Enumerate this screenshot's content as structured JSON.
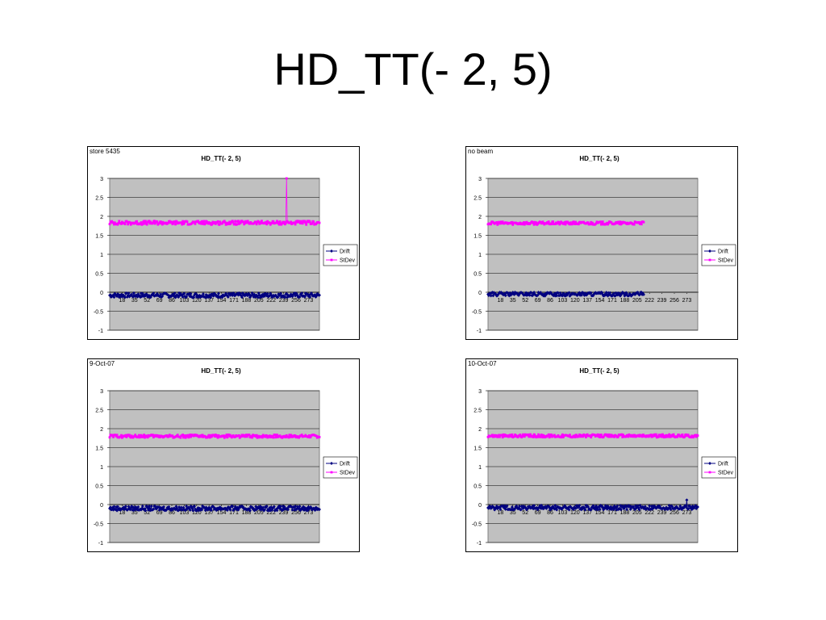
{
  "slide": {
    "title": "HD_TT(- 2, 5)"
  },
  "colors": {
    "drift": "#000080",
    "stdev": "#ff00ff",
    "plot_bg": "#c0c0c0",
    "grid": "#000000"
  },
  "chart_data": [
    {
      "type": "line",
      "corner_label": "store 5435",
      "title": "HD_TT(- 2, 5)",
      "ylim": [
        -1,
        3
      ],
      "y_ticks": [
        "3",
        "2.5",
        "2",
        "1.5",
        "1",
        "0.5",
        "0",
        "-0.5",
        "-1"
      ],
      "x_range": [
        1,
        288
      ],
      "x_ticks": [
        "18",
        "35",
        "52",
        "69",
        "86",
        "103",
        "120",
        "137",
        "154",
        "171",
        "188",
        "205",
        "222",
        "239",
        "256",
        "273"
      ],
      "legend": {
        "position": "right",
        "entries": [
          "Drift",
          "StDev"
        ]
      },
      "series": [
        {
          "name": "Drift",
          "color": "#000080",
          "baseline": -0.08,
          "jitter": 0.06,
          "points": 288,
          "spikes": []
        },
        {
          "name": "StDev",
          "color": "#ff00ff",
          "baseline": 1.83,
          "jitter": 0.05,
          "points": 288,
          "spikes": [
            {
              "x": 243,
              "y": 3.0
            }
          ]
        }
      ]
    },
    {
      "type": "line",
      "corner_label": "no beam",
      "title": "HD_TT(- 2, 5)",
      "ylim": [
        -1,
        3
      ],
      "y_ticks": [
        "3",
        "2.5",
        "2",
        "1.5",
        "1",
        "0.5",
        "0",
        "-0.5",
        "-1"
      ],
      "x_range": [
        1,
        288
      ],
      "x_ticks": [
        "18",
        "35",
        "52",
        "69",
        "86",
        "103",
        "120",
        "137",
        "154",
        "171",
        "188",
        "205",
        "222",
        "239",
        "256",
        "273"
      ],
      "legend": {
        "position": "right",
        "entries": [
          "Drift",
          "StDev"
        ]
      },
      "series": [
        {
          "name": "Drift",
          "color": "#000080",
          "baseline": -0.05,
          "jitter": 0.05,
          "points": 214,
          "tail_zero_to": 288,
          "spikes": []
        },
        {
          "name": "StDev",
          "color": "#ff00ff",
          "baseline": 1.82,
          "jitter": 0.04,
          "points": 214,
          "spikes": []
        }
      ]
    },
    {
      "type": "line",
      "corner_label": "9-Oct-07",
      "title": "HD_TT(- 2, 5)",
      "ylim": [
        -1,
        3
      ],
      "y_ticks": [
        "3",
        "2.5",
        "2",
        "1.5",
        "1",
        "0.5",
        "0",
        "-0.5",
        "-1"
      ],
      "x_range": [
        1,
        288
      ],
      "x_ticks": [
        "18",
        "35",
        "52",
        "69",
        "86",
        "103",
        "120",
        "137",
        "154",
        "171",
        "188",
        "205",
        "222",
        "239",
        "256",
        "273"
      ],
      "legend": {
        "position": "right",
        "entries": [
          "Drift",
          "StDev"
        ]
      },
      "series": [
        {
          "name": "Drift",
          "color": "#000080",
          "baseline": -0.1,
          "jitter": 0.06,
          "points": 288,
          "spikes": []
        },
        {
          "name": "StDev",
          "color": "#ff00ff",
          "baseline": 1.8,
          "jitter": 0.04,
          "points": 288,
          "spikes": []
        }
      ]
    },
    {
      "type": "line",
      "corner_label": "10-Oct-07",
      "title": "HD_TT(- 2, 5)",
      "ylim": [
        -1,
        3
      ],
      "y_ticks": [
        "3",
        "2.5",
        "2",
        "1.5",
        "1",
        "0.5",
        "0",
        "-0.5",
        "-1"
      ],
      "x_range": [
        1,
        288
      ],
      "x_ticks": [
        "18",
        "35",
        "52",
        "69",
        "86",
        "103",
        "120",
        "137",
        "154",
        "171",
        "188",
        "205",
        "222",
        "239",
        "256",
        "273"
      ],
      "legend": {
        "position": "right",
        "entries": [
          "Drift",
          "StDev"
        ]
      },
      "series": [
        {
          "name": "Drift",
          "color": "#000080",
          "baseline": -0.08,
          "jitter": 0.06,
          "points": 288,
          "spikes": [
            {
              "x": 273,
              "y": 0.12
            }
          ]
        },
        {
          "name": "StDev",
          "color": "#ff00ff",
          "baseline": 1.81,
          "jitter": 0.04,
          "points": 288,
          "spikes": []
        }
      ]
    }
  ]
}
